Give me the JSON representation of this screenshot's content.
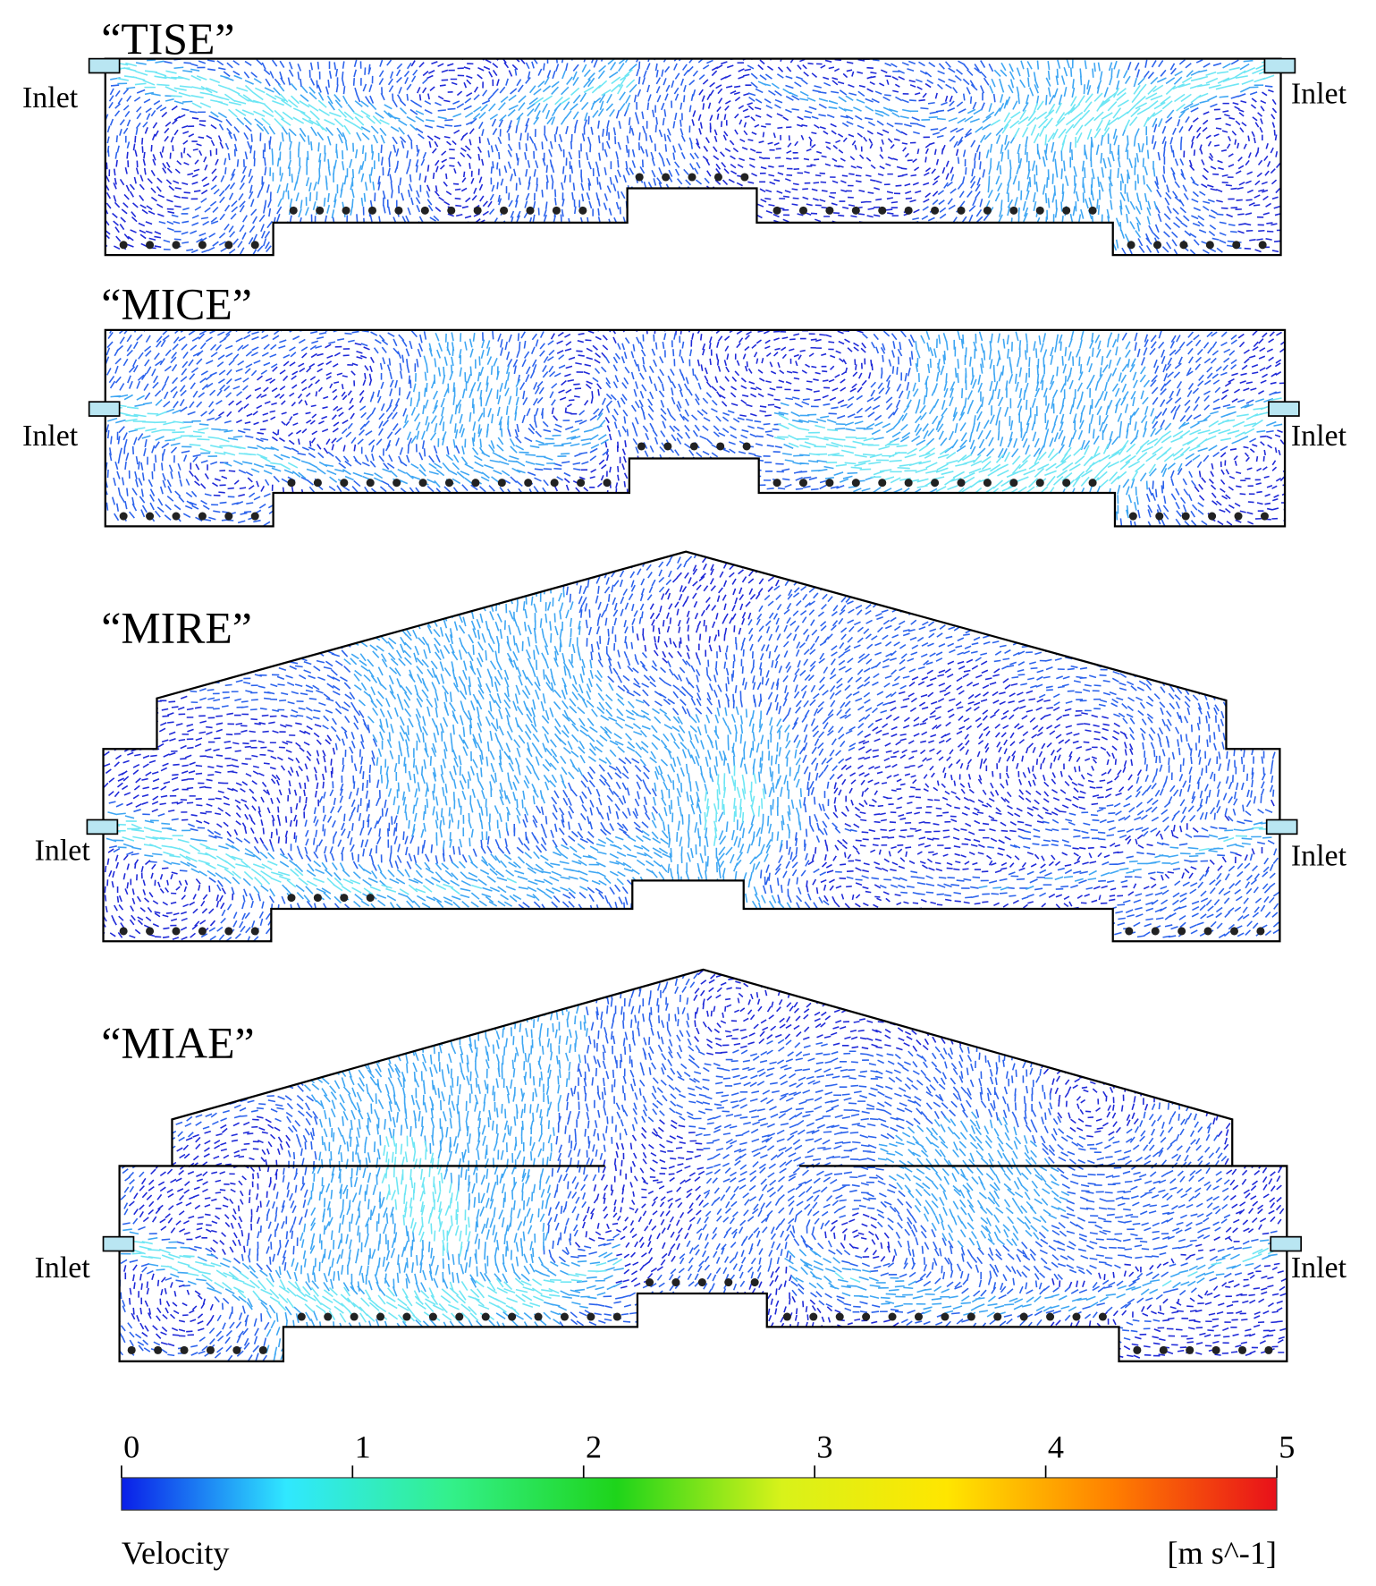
{
  "panels": [
    {
      "title": "“TISE”",
      "inlet_left": "Inlet",
      "inlet_right": "Inlet"
    },
    {
      "title": "“MICE”",
      "inlet_left": "Inlet",
      "inlet_right": "Inlet"
    },
    {
      "title": "“MIRE”",
      "inlet_left": "Inlet",
      "inlet_right": "Inlet"
    },
    {
      "title": "“MIAE”",
      "inlet_left": "Inlet",
      "inlet_right": "Inlet"
    }
  ],
  "colorbar": {
    "label": "Velocity",
    "unit": "[m s^-1]",
    "lim": [
      0,
      5
    ],
    "ticks": [
      0,
      1,
      2,
      3,
      4,
      5
    ],
    "colors": [
      "#0a1ee8",
      "#30e8ff",
      "#33f08a",
      "#1ed41a",
      "#d8f21a",
      "#ffe600",
      "#ff8000",
      "#e8101a"
    ]
  }
}
